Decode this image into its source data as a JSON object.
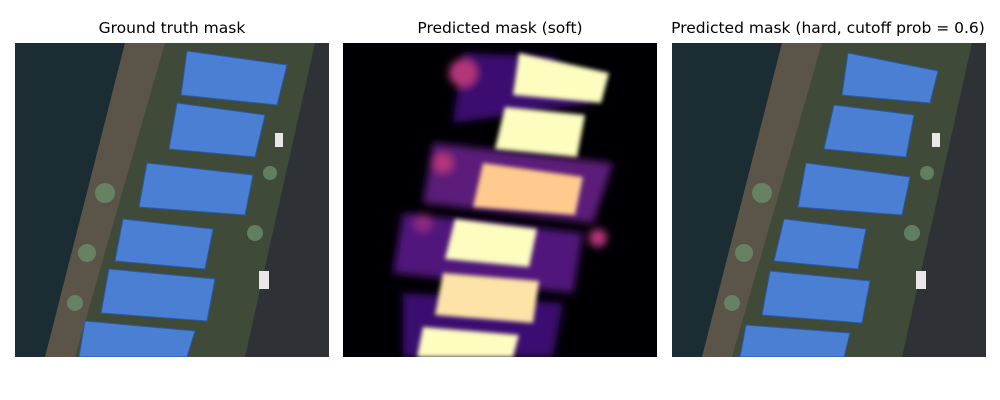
{
  "figure": {
    "panels": [
      {
        "title": "Ground truth mask",
        "kind": "overlay"
      },
      {
        "title": "Predicted mask (soft)",
        "kind": "heatmap",
        "colormap": "magma"
      },
      {
        "title": "Predicted mask (hard, cutoff prob = 0.6)",
        "kind": "overlay"
      }
    ]
  },
  "colors": {
    "water": "#1b2c32",
    "road": "#2e3236",
    "mask_blue": "#4a7fd4",
    "heat_low": "#000004",
    "heat_mid": "#b5367a",
    "heat_high": "#fcfdbf"
  }
}
